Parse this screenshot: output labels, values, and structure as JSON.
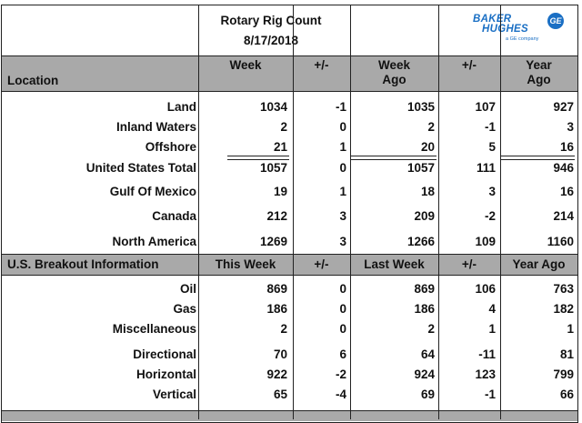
{
  "header": {
    "title": "Rotary Rig Count",
    "date": "8/17/2018"
  },
  "logo": {
    "line1": "BAKER",
    "line2": "HUGHES",
    "sub": "a GE company",
    "ge": "GE"
  },
  "section1": {
    "location_label": "Location",
    "columns": [
      {
        "l1": "Week",
        "l2": ""
      },
      {
        "l1": "+/-",
        "l2": ""
      },
      {
        "l1": "Week",
        "l2": "Ago"
      },
      {
        "l1": "+/-",
        "l2": ""
      },
      {
        "l1": "Year",
        "l2": "Ago"
      }
    ],
    "rows": [
      {
        "label": "Land",
        "v": [
          "1034",
          "-1",
          "1035",
          "107",
          "927"
        ]
      },
      {
        "label": "Inland Waters",
        "v": [
          "2",
          "0",
          "2",
          "-1",
          "3"
        ]
      },
      {
        "label": "Offshore",
        "v": [
          "21",
          "1",
          "20",
          "5",
          "16"
        ]
      },
      {
        "label": "United States Total",
        "v": [
          "1057",
          "0",
          "1057",
          "111",
          "946"
        ]
      },
      {
        "label": "Gulf Of Mexico",
        "v": [
          "19",
          "1",
          "18",
          "3",
          "16"
        ]
      },
      {
        "label": "Canada",
        "v": [
          "212",
          "3",
          "209",
          "-2",
          "214"
        ]
      },
      {
        "label": "North America",
        "v": [
          "1269",
          "3",
          "1266",
          "109",
          "1160"
        ]
      }
    ]
  },
  "section2": {
    "title": "U.S. Breakout Information",
    "columns": [
      "This Week",
      "+/-",
      "Last Week",
      "+/-",
      "Year Ago"
    ],
    "rows": [
      {
        "label": "Oil",
        "v": [
          "869",
          "0",
          "869",
          "106",
          "763"
        ]
      },
      {
        "label": "Gas",
        "v": [
          "186",
          "0",
          "186",
          "4",
          "182"
        ]
      },
      {
        "label": "Miscellaneous",
        "v": [
          "2",
          "0",
          "2",
          "1",
          "1"
        ]
      },
      {
        "label": "Directional",
        "v": [
          "70",
          "6",
          "64",
          "-11",
          "81"
        ]
      },
      {
        "label": "Horizontal",
        "v": [
          "922",
          "-2",
          "924",
          "123",
          "799"
        ]
      },
      {
        "label": "Vertical",
        "v": [
          "65",
          "-4",
          "69",
          "-1",
          "66"
        ]
      }
    ]
  }
}
